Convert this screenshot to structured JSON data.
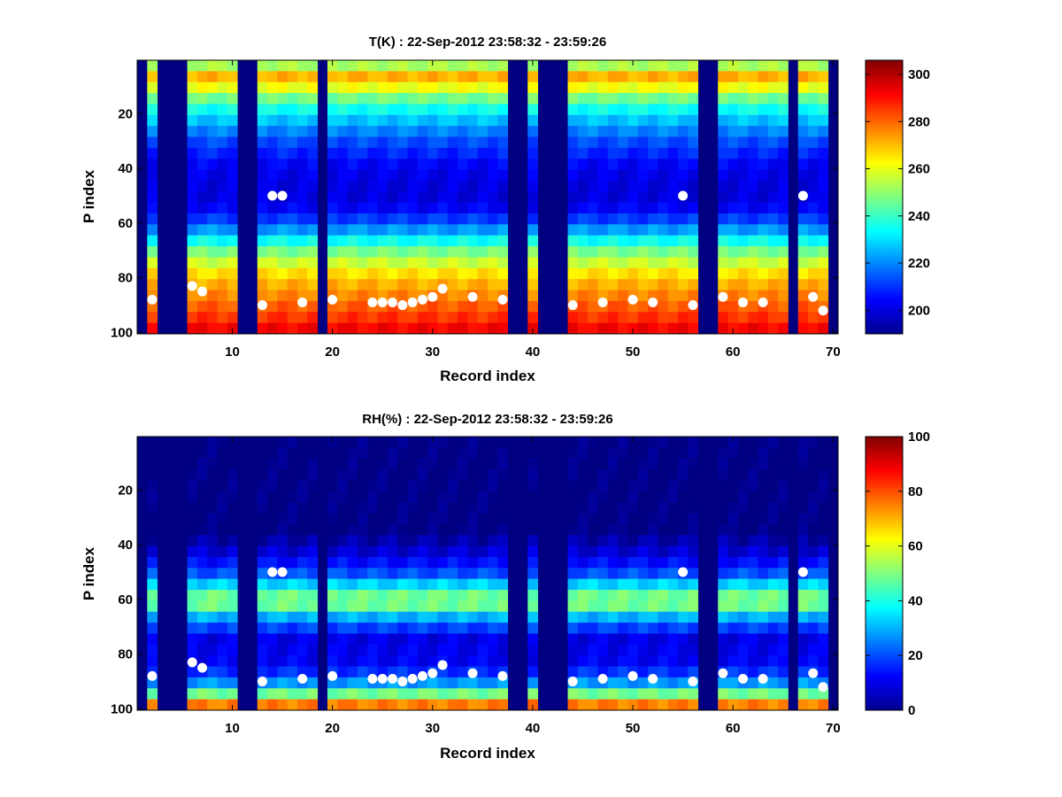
{
  "chart_data": [
    {
      "type": "heatmap",
      "title": "T(K) : 22-Sep-2012 23:58:32 - 23:59:26",
      "xlabel": "Record index",
      "ylabel": "P index",
      "xlim": [
        0.5,
        70.5
      ],
      "ylim": [
        0.5,
        100.5
      ],
      "y_reversed": true,
      "x_ticks": [
        "10",
        "20",
        "30",
        "40",
        "50",
        "60",
        "70"
      ],
      "y_ticks": [
        "20",
        "40",
        "60",
        "80",
        "100"
      ],
      "colorbar": {
        "range": [
          190,
          306
        ],
        "ticks": [
          "200",
          "220",
          "240",
          "260",
          "280",
          "300"
        ]
      },
      "colormap": "jet",
      "fill_value": 190,
      "valid_records": [
        2,
        6,
        7,
        8,
        9,
        10,
        13,
        14,
        15,
        16,
        17,
        18,
        20,
        21,
        22,
        23,
        24,
        25,
        26,
        27,
        28,
        29,
        30,
        31,
        32,
        33,
        34,
        35,
        36,
        37,
        40,
        44,
        45,
        46,
        47,
        48,
        49,
        50,
        51,
        52,
        53,
        54,
        55,
        56,
        59,
        60,
        61,
        62,
        63,
        64,
        65,
        67,
        68,
        69
      ],
      "profile": {
        "p_index": [
          1,
          5,
          8,
          12,
          20,
          30,
          40,
          50,
          55,
          60,
          65,
          70,
          80,
          85,
          90,
          95,
          98
        ],
        "value": [
          248,
          258,
          278,
          255,
          232,
          214,
          203,
          200,
          204,
          213,
          228,
          245,
          268,
          274,
          280,
          286,
          292
        ]
      },
      "marker_points": [
        [
          2,
          88
        ],
        [
          6,
          83
        ],
        [
          7,
          85
        ],
        [
          13,
          90
        ],
        [
          14,
          50
        ],
        [
          15,
          50
        ],
        [
          17,
          89
        ],
        [
          20,
          88
        ],
        [
          24,
          89
        ],
        [
          25,
          89
        ],
        [
          26,
          89
        ],
        [
          27,
          90
        ],
        [
          28,
          89
        ],
        [
          29,
          88
        ],
        [
          30,
          87
        ],
        [
          31,
          84
        ],
        [
          34,
          87
        ],
        [
          37,
          88
        ],
        [
          44,
          90
        ],
        [
          47,
          89
        ],
        [
          50,
          88
        ],
        [
          52,
          89
        ],
        [
          55,
          50
        ],
        [
          56,
          90
        ],
        [
          59,
          87
        ],
        [
          61,
          89
        ],
        [
          63,
          89
        ],
        [
          67,
          50
        ],
        [
          68,
          87
        ],
        [
          69,
          92
        ]
      ]
    },
    {
      "type": "heatmap",
      "title": "RH(%) : 22-Sep-2012 23:58:32 - 23:59:26",
      "xlabel": "Record index",
      "ylabel": "P index",
      "xlim": [
        0.5,
        70.5
      ],
      "ylim": [
        0.5,
        100.5
      ],
      "y_reversed": true,
      "x_ticks": [
        "10",
        "20",
        "30",
        "40",
        "50",
        "60",
        "70"
      ],
      "y_ticks": [
        "20",
        "40",
        "60",
        "80",
        "100"
      ],
      "colorbar": {
        "range": [
          0,
          100
        ],
        "ticks": [
          "0",
          "20",
          "40",
          "60",
          "80",
          "100"
        ]
      },
      "colormap": "jet",
      "fill_value": 0,
      "valid_records": [
        2,
        6,
        7,
        8,
        9,
        10,
        13,
        14,
        15,
        16,
        17,
        18,
        20,
        21,
        22,
        23,
        24,
        25,
        26,
        27,
        28,
        29,
        30,
        31,
        32,
        33,
        34,
        35,
        36,
        37,
        40,
        44,
        45,
        46,
        47,
        48,
        49,
        50,
        51,
        52,
        53,
        54,
        55,
        56,
        59,
        60,
        61,
        62,
        63,
        64,
        65,
        67,
        68,
        69
      ],
      "profile": {
        "p_index": [
          1,
          35,
          45,
          52,
          58,
          61,
          64,
          68,
          75,
          85,
          92,
          96,
          98
        ],
        "value": [
          0,
          0,
          10,
          22,
          45,
          55,
          45,
          25,
          10,
          12,
          30,
          55,
          75
        ]
      },
      "marker_points": [
        [
          2,
          88
        ],
        [
          6,
          83
        ],
        [
          7,
          85
        ],
        [
          13,
          90
        ],
        [
          14,
          50
        ],
        [
          15,
          50
        ],
        [
          17,
          89
        ],
        [
          20,
          88
        ],
        [
          24,
          89
        ],
        [
          25,
          89
        ],
        [
          26,
          89
        ],
        [
          27,
          90
        ],
        [
          28,
          89
        ],
        [
          29,
          88
        ],
        [
          30,
          87
        ],
        [
          31,
          84
        ],
        [
          34,
          87
        ],
        [
          37,
          88
        ],
        [
          44,
          90
        ],
        [
          47,
          89
        ],
        [
          50,
          88
        ],
        [
          52,
          89
        ],
        [
          55,
          50
        ],
        [
          56,
          90
        ],
        [
          59,
          87
        ],
        [
          61,
          89
        ],
        [
          63,
          89
        ],
        [
          67,
          50
        ],
        [
          68,
          87
        ],
        [
          69,
          92
        ]
      ]
    }
  ]
}
